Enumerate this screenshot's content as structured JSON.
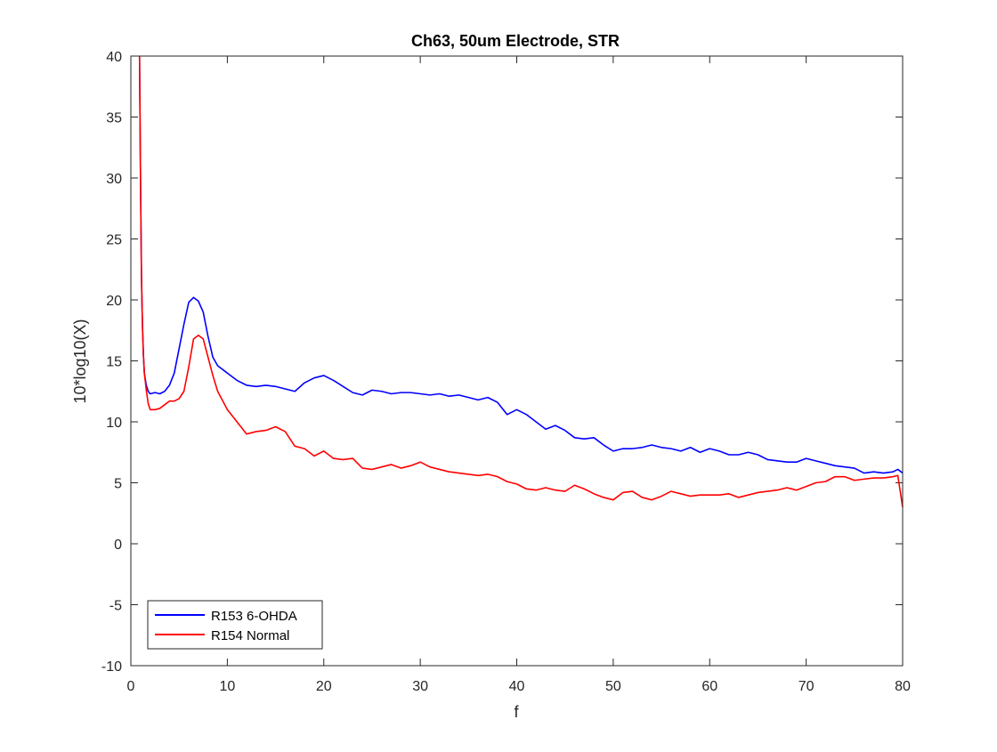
{
  "chart_data": {
    "type": "line",
    "title": "Ch63, 50um Electrode, STR",
    "xlabel": "f",
    "ylabel": "10*log10(X)",
    "xlim": [
      0,
      80
    ],
    "ylim": [
      -10,
      40
    ],
    "xticks": [
      0,
      10,
      20,
      30,
      40,
      50,
      60,
      70,
      80
    ],
    "yticks": [
      -10,
      -5,
      0,
      5,
      10,
      15,
      20,
      25,
      30,
      35,
      40
    ],
    "grid": false,
    "legend_position": "bottom-left",
    "series": [
      {
        "name": "R153 6-OHDA",
        "color": "#0000ff",
        "x": [
          0.9,
          1.0,
          1.1,
          1.2,
          1.3,
          1.4,
          1.6,
          1.8,
          2.0,
          2.5,
          3.0,
          3.5,
          4.0,
          4.5,
          5.0,
          5.5,
          6.0,
          6.5,
          7.0,
          7.5,
          8.0,
          8.5,
          9.0,
          10.0,
          11.0,
          12.0,
          13.0,
          14.0,
          15.0,
          16.0,
          17.0,
          18.0,
          19.0,
          20.0,
          21.0,
          22.0,
          23.0,
          24.0,
          25.0,
          26.0,
          27.0,
          28.0,
          29.0,
          30.0,
          31.0,
          32.0,
          33.0,
          34.0,
          35.0,
          36.0,
          37.0,
          38.0,
          39.0,
          40.0,
          41.0,
          42.0,
          43.0,
          44.0,
          45.0,
          46.0,
          47.0,
          48.0,
          49.0,
          50.0,
          51.0,
          52.0,
          53.0,
          54.0,
          55.0,
          56.0,
          57.0,
          58.0,
          59.0,
          60.0,
          61.0,
          62.0,
          63.0,
          64.0,
          65.0,
          66.0,
          67.0,
          68.0,
          69.0,
          70.0,
          71.0,
          72.0,
          73.0,
          74.0,
          75.0,
          76.0,
          77.0,
          78.0,
          79.0,
          79.5,
          80.0
        ],
        "values": [
          40.0,
          30.0,
          22.0,
          18.0,
          15.5,
          14.0,
          13.0,
          12.5,
          12.3,
          12.4,
          12.3,
          12.5,
          13.0,
          14.0,
          16.0,
          18.0,
          19.8,
          20.2,
          19.9,
          19.0,
          17.0,
          15.3,
          14.6,
          14.0,
          13.4,
          13.0,
          12.9,
          13.0,
          12.9,
          12.7,
          12.5,
          13.2,
          13.6,
          13.8,
          13.4,
          12.9,
          12.4,
          12.2,
          12.6,
          12.5,
          12.3,
          12.4,
          12.4,
          12.3,
          12.2,
          12.3,
          12.1,
          12.2,
          12.0,
          11.8,
          12.0,
          11.6,
          10.6,
          11.0,
          10.6,
          10.0,
          9.4,
          9.7,
          9.3,
          8.7,
          8.6,
          8.7,
          8.1,
          7.6,
          7.8,
          7.8,
          7.9,
          8.1,
          7.9,
          7.8,
          7.6,
          7.9,
          7.5,
          7.8,
          7.6,
          7.3,
          7.3,
          7.5,
          7.3,
          6.9,
          6.8,
          6.7,
          6.7,
          7.0,
          6.8,
          6.6,
          6.4,
          6.3,
          6.2,
          5.8,
          5.9,
          5.8,
          5.9,
          6.1,
          5.8
        ]
      },
      {
        "name": "R154 Normal",
        "color": "#ff0000",
        "x": [
          0.9,
          1.0,
          1.1,
          1.2,
          1.3,
          1.4,
          1.6,
          1.8,
          2.0,
          2.5,
          3.0,
          3.5,
          4.0,
          4.5,
          5.0,
          5.5,
          6.0,
          6.5,
          7.0,
          7.5,
          8.0,
          8.5,
          9.0,
          10.0,
          11.0,
          12.0,
          13.0,
          14.0,
          15.0,
          16.0,
          17.0,
          18.0,
          19.0,
          20.0,
          21.0,
          22.0,
          23.0,
          24.0,
          25.0,
          26.0,
          27.0,
          28.0,
          29.0,
          30.0,
          31.0,
          32.0,
          33.0,
          34.0,
          35.0,
          36.0,
          37.0,
          38.0,
          39.0,
          40.0,
          41.0,
          42.0,
          43.0,
          44.0,
          45.0,
          46.0,
          47.0,
          48.0,
          49.0,
          50.0,
          51.0,
          52.0,
          53.0,
          54.0,
          55.0,
          56.0,
          57.0,
          58.0,
          59.0,
          60.0,
          61.0,
          62.0,
          63.0,
          64.0,
          65.0,
          66.0,
          67.0,
          68.0,
          69.0,
          70.0,
          71.0,
          72.0,
          73.0,
          74.0,
          75.0,
          76.0,
          77.0,
          78.0,
          79.0,
          79.5,
          80.0
        ],
        "values": [
          40.0,
          30.0,
          22.0,
          18.0,
          15.5,
          14.0,
          12.6,
          11.5,
          11.0,
          11.0,
          11.1,
          11.4,
          11.7,
          11.7,
          11.9,
          12.5,
          14.5,
          16.8,
          17.1,
          16.8,
          15.3,
          13.8,
          12.5,
          11.0,
          10.0,
          9.0,
          9.2,
          9.3,
          9.6,
          9.2,
          8.0,
          7.8,
          7.2,
          7.6,
          7.0,
          6.9,
          7.0,
          6.2,
          6.1,
          6.3,
          6.5,
          6.2,
          6.4,
          6.7,
          6.3,
          6.1,
          5.9,
          5.8,
          5.7,
          5.6,
          5.7,
          5.5,
          5.1,
          4.9,
          4.5,
          4.4,
          4.6,
          4.4,
          4.3,
          4.8,
          4.5,
          4.1,
          3.8,
          3.6,
          4.2,
          4.3,
          3.8,
          3.6,
          3.9,
          4.3,
          4.1,
          3.9,
          4.0,
          4.0,
          4.0,
          4.1,
          3.8,
          4.0,
          4.2,
          4.3,
          4.4,
          4.6,
          4.4,
          4.7,
          5.0,
          5.1,
          5.5,
          5.5,
          5.2,
          5.3,
          5.4,
          5.4,
          5.5,
          5.6,
          3.0
        ]
      }
    ]
  }
}
